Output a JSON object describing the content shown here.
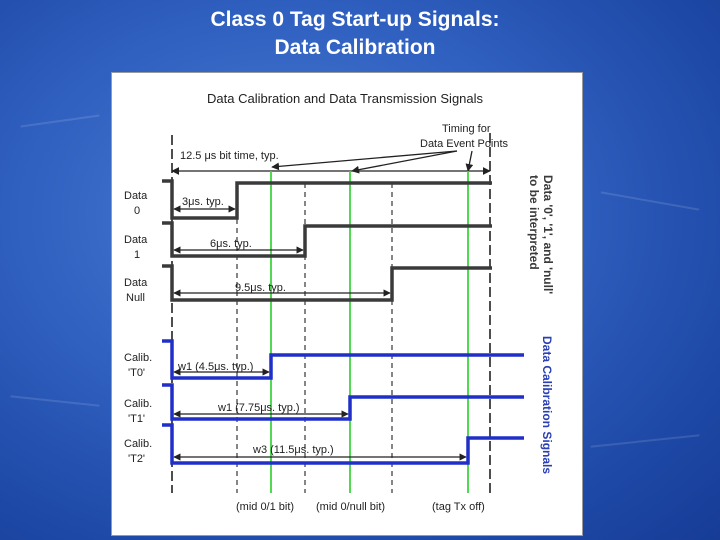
{
  "slide": {
    "title_line1": "Class 0 Tag Start-up Signals:",
    "title_line2": "Data Calibration"
  },
  "figure": {
    "header": "Data Calibration and Data Transmission Signals",
    "timing_note_line1": "Timing for",
    "timing_note_line2": "Data Event Points",
    "bit_time_label": "12.5 μs bit time, typ.",
    "rows": [
      {
        "label1": "Data",
        "label2": "0",
        "duration": "3μs. typ."
      },
      {
        "label1": "Data",
        "label2": "1",
        "duration": "6μs. typ."
      },
      {
        "label1": "Data",
        "label2": "Null",
        "duration": "9.5μs. typ."
      },
      {
        "label1": "Calib.",
        "label2": "'T0'",
        "duration": "w1 (4.5μs. typ.)"
      },
      {
        "label1": "Calib.",
        "label2": "'T1'",
        "duration": "w1 (7.75μs. typ.)"
      },
      {
        "label1": "Calib.",
        "label2": "'T2'",
        "duration": "w3 (11.5μs. typ.)"
      }
    ],
    "bottom_labels": [
      "(mid 0/1 bit)",
      "(mid 0/null bit)",
      "(tag Tx off)"
    ],
    "side_label_black_line1": "Data '0', '1', and 'null'",
    "side_label_black_line2": "to be interpreted",
    "side_label_blue": "Data Calibration Signals",
    "colors": {
      "data_signal": "#3a3a3a",
      "calib_signal": "#1f2fc8",
      "event_marker": "#3fd43f",
      "blue_text": "#2a3fb5"
    }
  }
}
